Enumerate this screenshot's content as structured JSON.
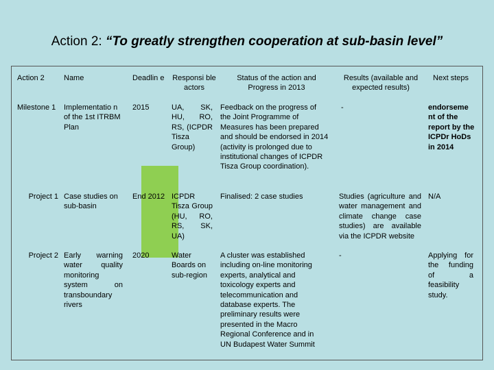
{
  "title": {
    "prefix": "Action 2: ",
    "quote": "“To greatly strengthen cooperation at sub-basin level”"
  },
  "colors": {
    "background": "#b9dfe3",
    "highlight": "#8fcf52"
  },
  "table": {
    "headers": {
      "action": "Action 2",
      "name": "Name",
      "deadline": "Deadlin e",
      "responsible": "Responsi ble actors",
      "status": "Status of the action and Progress in 2013",
      "results": "Results (available and expected results)",
      "next": "Next steps"
    },
    "rows": [
      {
        "action": "Milestone 1",
        "name": "Implementatio n of the 1st ITRBM Plan",
        "deadline": "2015",
        "responsible": "UA, SK, HU, RO, RS, (ICPDR Tisza Group)",
        "status": "Feedback on the progress of the Joint Programme of Measures has been prepared and should be endorsed in 2014 (activity is prolonged due to institutional changes of ICPDR Tisza Group coordination).",
        "results": "-",
        "next": "endorseme nt of the report by the ICPDr HoDs in 2014"
      },
      {
        "action": "Project 1",
        "name": "Case studies on sub-basin",
        "deadline": "End 2012",
        "responsible": "ICPDR Tisza Group (HU, RO, RS, SK, UA)",
        "status": "Finalised: 2 case studies",
        "results": "Studies (agriculture and water management and climate change case studies) are available via the ICPDR website",
        "next": "N/A"
      },
      {
        "action": "Project 2",
        "name": "Early warning water quality monitoring system on transboundary rivers",
        "deadline": "2020",
        "responsible": "Water Boards on sub-region",
        "status": "A cluster was established including on-line monitoring experts, analytical and toxicology experts and telecommunication and database experts. The preliminary results were presented in the Macro Regional Conference and in UN Budapest Water Summit",
        "results": "-",
        "next": "Applying for the funding of a feasibility study."
      }
    ]
  }
}
